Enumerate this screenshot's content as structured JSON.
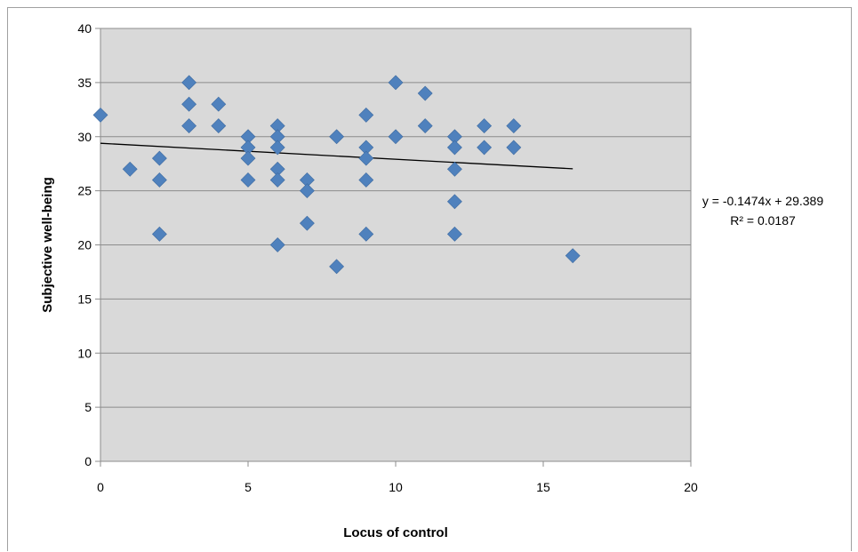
{
  "chart_data": {
    "type": "scatter",
    "xlabel": "Locus of control",
    "ylabel": "Subjective well-being",
    "xlim": [
      0,
      20
    ],
    "ylim": [
      0,
      40
    ],
    "xticks": [
      "0",
      "5",
      "10",
      "15",
      "20"
    ],
    "yticks": [
      "0",
      "5",
      "10",
      "15",
      "20",
      "25",
      "30",
      "35",
      "40"
    ],
    "grid": "horizontal",
    "plot_background": "#d9d9d9",
    "marker_color": "#4f81bd",
    "marker": "diamond",
    "points": [
      [
        0,
        32
      ],
      [
        1,
        27
      ],
      [
        2,
        28
      ],
      [
        2,
        26
      ],
      [
        2,
        21
      ],
      [
        3,
        35
      ],
      [
        3,
        33
      ],
      [
        3,
        31
      ],
      [
        4,
        33
      ],
      [
        4,
        31
      ],
      [
        5,
        30
      ],
      [
        5,
        29
      ],
      [
        5,
        28
      ],
      [
        5,
        26
      ],
      [
        6,
        31
      ],
      [
        6,
        30
      ],
      [
        6,
        29
      ],
      [
        6,
        27
      ],
      [
        6,
        26
      ],
      [
        6,
        20
      ],
      [
        7,
        26
      ],
      [
        7,
        25
      ],
      [
        7,
        22
      ],
      [
        8,
        30
      ],
      [
        8,
        18
      ],
      [
        9,
        32
      ],
      [
        9,
        29
      ],
      [
        9,
        28
      ],
      [
        9,
        26
      ],
      [
        9,
        21
      ],
      [
        10,
        35
      ],
      [
        10,
        30
      ],
      [
        11,
        34
      ],
      [
        11,
        31
      ],
      [
        12,
        30
      ],
      [
        12,
        29
      ],
      [
        12,
        27
      ],
      [
        12,
        24
      ],
      [
        12,
        21
      ],
      [
        13,
        31
      ],
      [
        13,
        29
      ],
      [
        14,
        31
      ],
      [
        14,
        29
      ],
      [
        16,
        19
      ]
    ],
    "trendline": {
      "x_range": [
        0,
        16
      ],
      "slope": -0.1474,
      "intercept": 29.389,
      "color": "#000000",
      "equation": "y = -0.1474x + 29.389",
      "r_squared": "R² = 0.0187"
    }
  }
}
